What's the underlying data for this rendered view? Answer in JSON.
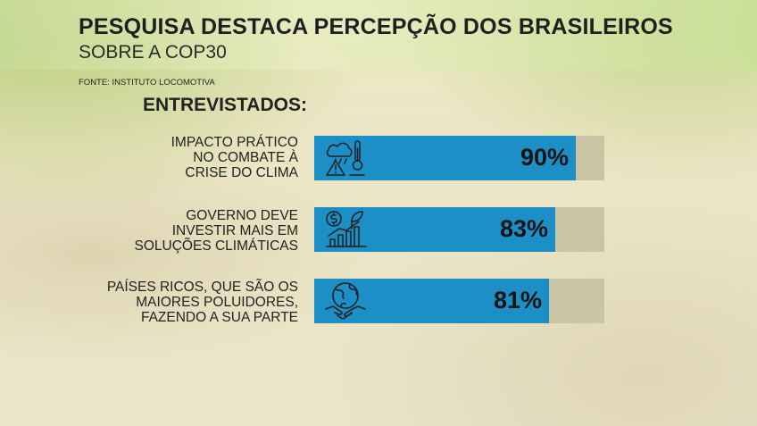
{
  "header": {
    "title": "PESQUISA DESTACA PERCEPÇÃO DOS BRASILEIROS",
    "subtitle": "SOBRE A COP30",
    "source": "FONTE: INSTITUTO LOCOMOTIVA"
  },
  "section_label": "ENTREVISTADOS:",
  "colors": {
    "bar_fill": "#1d8fc7",
    "bar_track": "#c9c4a4",
    "text": "#222222"
  },
  "chart_data": {
    "type": "bar",
    "orientation": "horizontal",
    "categories": [
      "IMPACTO PRÁTICO\nNO COMBATE À\nCRISE DO CLIMA",
      "GOVERNO DEVE\nINVESTIR MAIS EM\nSOLUÇÕES CLIMÁTICAS",
      "PAÍSES RICOS, QUE SÃO OS\nMAIORES POLUIDORES,\nFAZENDO A SUA PARTE"
    ],
    "values": [
      90,
      83,
      81
    ],
    "value_labels": [
      "90%",
      "83%",
      "81%"
    ],
    "icons": [
      "climate-hazard-icon",
      "green-investment-growth-icon",
      "global-handshake-icon"
    ],
    "xlim": [
      0,
      100
    ],
    "grid": false
  }
}
